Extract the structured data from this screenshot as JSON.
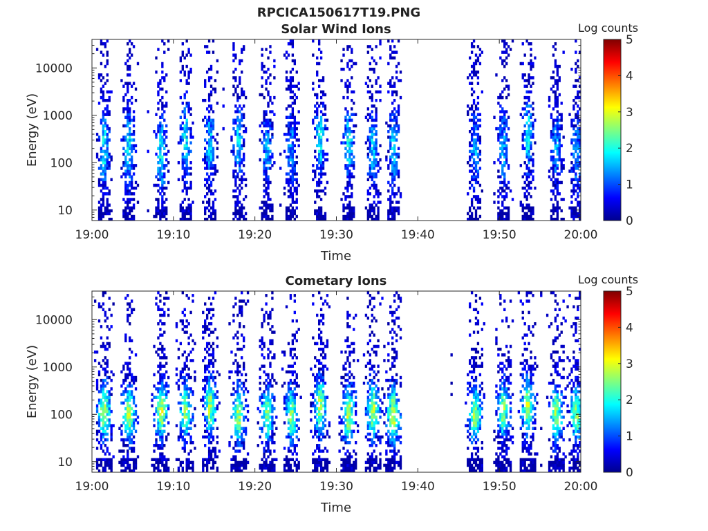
{
  "figure": {
    "title": "RPCICA150617T19.PNG"
  },
  "chart_data": [
    {
      "type": "heatmap",
      "title": "Solar Wind Ions",
      "xlabel": "Time",
      "ylabel": "Energy (eV)",
      "x_ticks": [
        "19:00",
        "19:10",
        "19:20",
        "19:30",
        "19:40",
        "19:50",
        "20:00"
      ],
      "xlim": [
        "19:00",
        "20:00"
      ],
      "y_scale": "log",
      "y_ticks": [
        "10",
        "100",
        "1000",
        "10000"
      ],
      "ylim": [
        6,
        40000
      ],
      "colorbar": {
        "label": "Log counts",
        "min": 0,
        "max": 5,
        "ticks": [
          "0",
          "1",
          "2",
          "3",
          "4",
          "5"
        ],
        "colormap": "jet"
      },
      "data_gap": [
        "19:38",
        "19:45"
      ],
      "bursts": [
        {
          "t": "19:01:30",
          "peak_eV": 200,
          "peak_log": 2.0
        },
        {
          "t": "19:04:30",
          "peak_eV": 200,
          "peak_log": 2.0
        },
        {
          "t": "19:08:30",
          "peak_eV": 150,
          "peak_log": 2.0
        },
        {
          "t": "19:11:30",
          "peak_eV": 300,
          "peak_log": 2.0
        },
        {
          "t": "19:14:30",
          "peak_eV": 250,
          "peak_log": 1.8
        },
        {
          "t": "19:18:00",
          "peak_eV": 300,
          "peak_log": 1.8
        },
        {
          "t": "19:21:30",
          "peak_eV": 200,
          "peak_log": 1.5
        },
        {
          "t": "19:24:30",
          "peak_eV": 200,
          "peak_log": 1.5
        },
        {
          "t": "19:28:00",
          "peak_eV": 300,
          "peak_log": 2.0
        },
        {
          "t": "19:31:30",
          "peak_eV": 250,
          "peak_log": 2.0
        },
        {
          "t": "19:34:30",
          "peak_eV": 200,
          "peak_log": 1.8
        },
        {
          "t": "19:37:00",
          "peak_eV": 200,
          "peak_log": 1.8
        },
        {
          "t": "19:47:00",
          "peak_eV": 200,
          "peak_log": 1.6
        },
        {
          "t": "19:50:30",
          "peak_eV": 200,
          "peak_log": 1.6
        },
        {
          "t": "19:53:30",
          "peak_eV": 400,
          "peak_log": 2.0
        },
        {
          "t": "19:57:00",
          "peak_eV": 200,
          "peak_log": 1.6
        },
        {
          "t": "19:59:30",
          "peak_eV": 150,
          "peak_log": 1.5
        }
      ]
    },
    {
      "type": "heatmap",
      "title": "Cometary Ions",
      "xlabel": "Time",
      "ylabel": "Energy (eV)",
      "x_ticks": [
        "19:00",
        "19:10",
        "19:20",
        "19:30",
        "19:40",
        "19:50",
        "20:00"
      ],
      "xlim": [
        "19:00",
        "20:00"
      ],
      "y_scale": "log",
      "y_ticks": [
        "10",
        "100",
        "1000",
        "10000"
      ],
      "ylim": [
        6,
        40000
      ],
      "colorbar": {
        "label": "Log counts",
        "min": 0,
        "max": 5,
        "ticks": [
          "0",
          "1",
          "2",
          "3",
          "4",
          "5"
        ],
        "colormap": "jet"
      },
      "data_gap": [
        "19:38",
        "19:44"
      ],
      "bursts": [
        {
          "t": "19:01:30",
          "peak_eV": 120,
          "peak_log": 3.0
        },
        {
          "t": "19:04:30",
          "peak_eV": 100,
          "peak_log": 3.0
        },
        {
          "t": "19:08:30",
          "peak_eV": 120,
          "peak_log": 3.1
        },
        {
          "t": "19:11:30",
          "peak_eV": 120,
          "peak_log": 2.8
        },
        {
          "t": "19:14:30",
          "peak_eV": 150,
          "peak_log": 2.9
        },
        {
          "t": "19:18:00",
          "peak_eV": 100,
          "peak_log": 2.9
        },
        {
          "t": "19:21:30",
          "peak_eV": 100,
          "peak_log": 2.7
        },
        {
          "t": "19:24:30",
          "peak_eV": 100,
          "peak_log": 2.7
        },
        {
          "t": "19:28:00",
          "peak_eV": 150,
          "peak_log": 3.0
        },
        {
          "t": "19:31:30",
          "peak_eV": 100,
          "peak_log": 3.0
        },
        {
          "t": "19:34:30",
          "peak_eV": 120,
          "peak_log": 3.0
        },
        {
          "t": "19:37:00",
          "peak_eV": 100,
          "peak_log": 3.1
        },
        {
          "t": "19:47:00",
          "peak_eV": 100,
          "peak_log": 2.8
        },
        {
          "t": "19:50:30",
          "peak_eV": 120,
          "peak_log": 2.8
        },
        {
          "t": "19:53:30",
          "peak_eV": 150,
          "peak_log": 3.0
        },
        {
          "t": "19:57:00",
          "peak_eV": 100,
          "peak_log": 2.8
        },
        {
          "t": "19:59:30",
          "peak_eV": 100,
          "peak_log": 2.7
        }
      ]
    }
  ]
}
